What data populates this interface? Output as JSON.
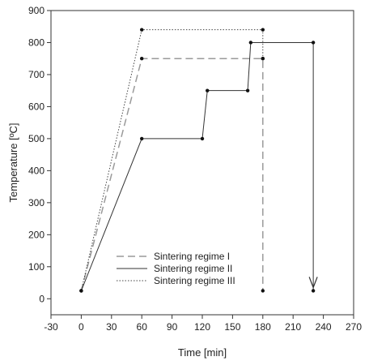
{
  "chart_data": {
    "type": "line",
    "xlabel": "Time [min]",
    "ylabel": "Temperature [ºC]",
    "xlim": [
      -30,
      270
    ],
    "ylim": [
      -50,
      900
    ],
    "x_ticks": [
      -30,
      0,
      30,
      60,
      90,
      120,
      150,
      180,
      210,
      240,
      270
    ],
    "y_ticks": [
      0,
      100,
      200,
      300,
      400,
      500,
      600,
      700,
      800,
      900
    ],
    "grid": false,
    "legend_position": "bottom-center",
    "series": [
      {
        "name": "Sintering regime I",
        "style": "dashed",
        "color": "#9a9a9a",
        "points": [
          [
            0,
            25
          ],
          [
            60,
            750
          ],
          [
            180,
            750
          ],
          [
            180,
            25
          ]
        ]
      },
      {
        "name": "Sintering regime II",
        "style": "solid",
        "color": "#333333",
        "points": [
          [
            0,
            25
          ],
          [
            60,
            500
          ],
          [
            120,
            500
          ],
          [
            125,
            650
          ],
          [
            165,
            650
          ],
          [
            168,
            800
          ],
          [
            230,
            800
          ],
          [
            230,
            25
          ]
        ]
      },
      {
        "name": "Sintering regime III",
        "style": "dotted",
        "color": "#444444",
        "points": [
          [
            0,
            25
          ],
          [
            60,
            840
          ],
          [
            180,
            840
          ],
          [
            180,
            750
          ]
        ]
      }
    ]
  }
}
